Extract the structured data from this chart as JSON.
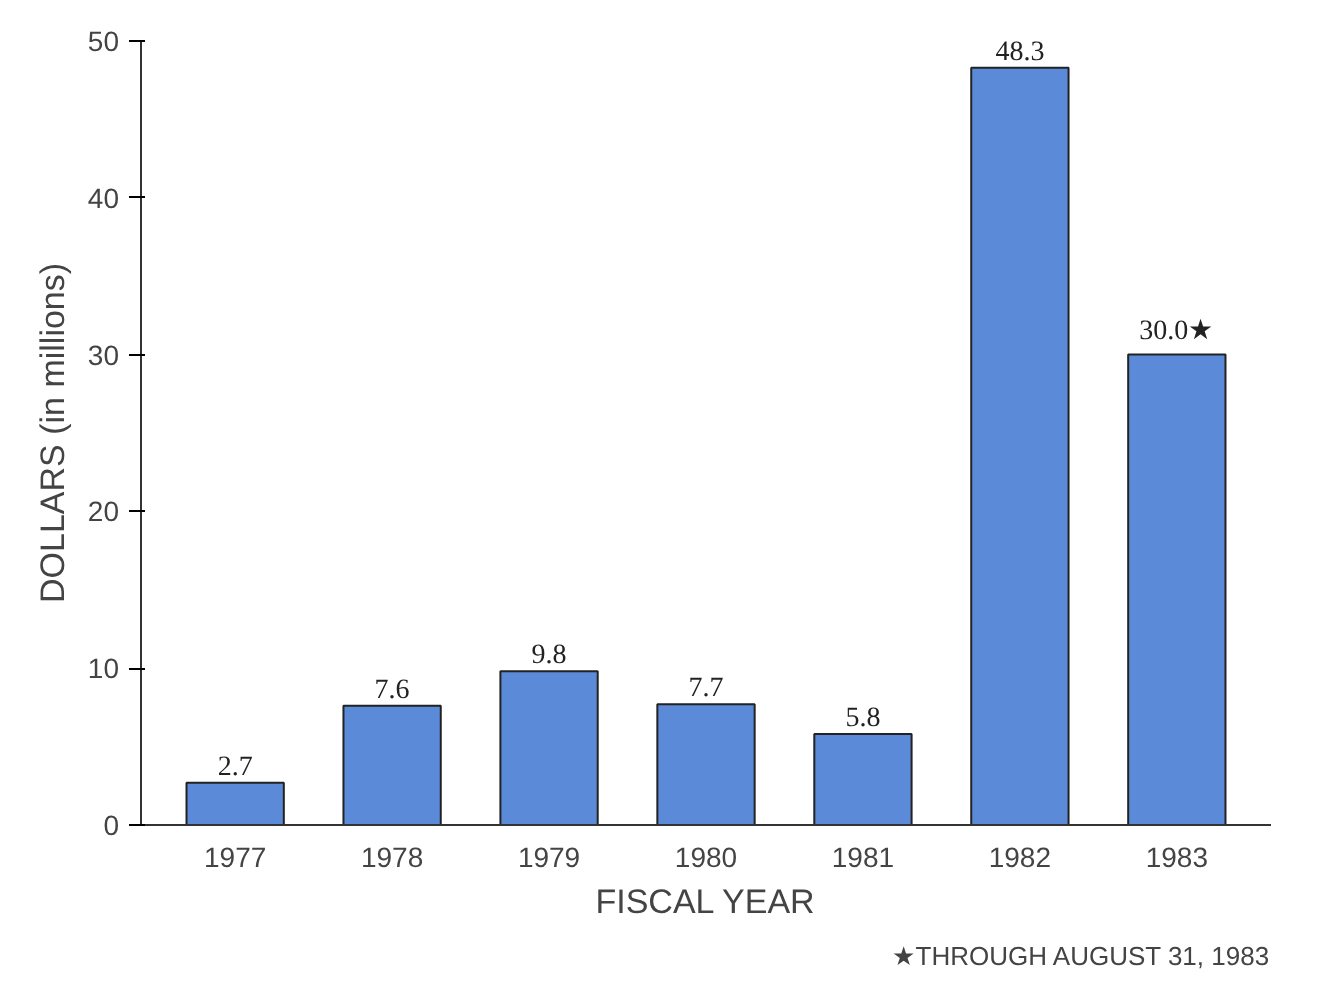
{
  "chart_data": {
    "type": "bar",
    "xlabel": "FISCAL YEAR",
    "ylabel": "DOLLARS (in millions)",
    "categories": [
      "1977",
      "1978",
      "1979",
      "1980",
      "1981",
      "1982",
      "1983"
    ],
    "values": [
      2.7,
      7.6,
      9.8,
      7.7,
      5.8,
      48.3,
      30.0
    ],
    "value_labels": [
      "2.7",
      "7.6",
      "9.8",
      "7.7",
      "5.8",
      "48.3",
      "30.0★"
    ],
    "color": "#5b8ad8",
    "ylim": [
      0,
      50
    ],
    "yticks": [
      0,
      10,
      20,
      30,
      40,
      50
    ],
    "grid": false,
    "annotations": [
      "★THROUGH AUGUST 31, 1983"
    ]
  }
}
